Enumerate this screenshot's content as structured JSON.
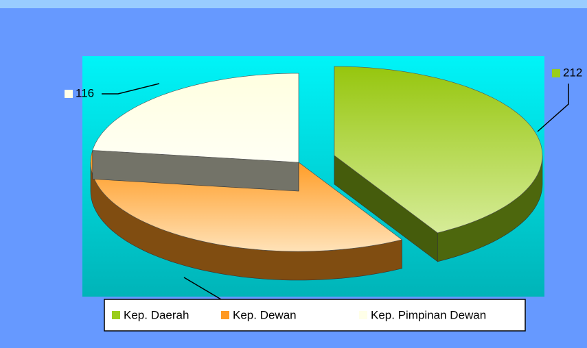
{
  "chart_data": {
    "type": "pie3d",
    "categories": [
      "Kep. Daerah",
      "Kep. Dewan",
      "Kep. Pimpinan Dewan"
    ],
    "values": [
      212,
      180,
      116
    ],
    "value_labels": [
      "212",
      null,
      "116"
    ],
    "colors": [
      "#9acd1a",
      "#ff9922",
      "#ffffe8"
    ],
    "exploded": [
      true,
      false,
      false
    ],
    "legend": "bottom"
  }
}
